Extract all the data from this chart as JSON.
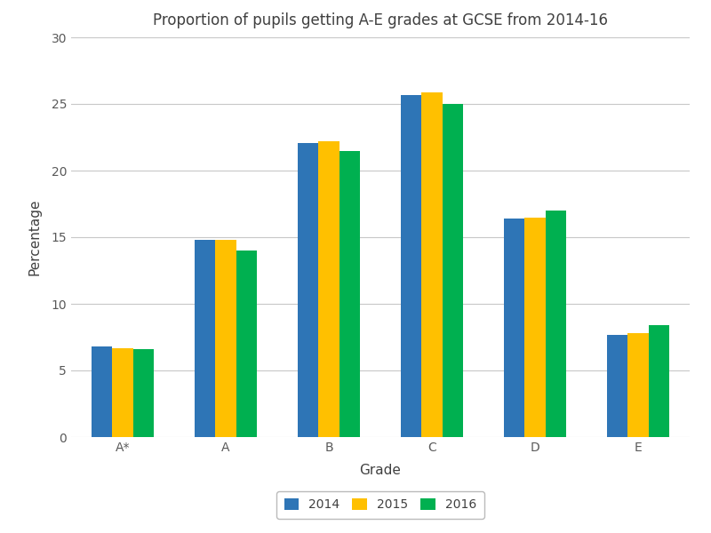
{
  "title": "Proportion of pupils getting A-E grades at GCSE from 2014-16",
  "xlabel": "Grade",
  "ylabel": "Percentage",
  "categories": [
    "A*",
    "A",
    "B",
    "C",
    "D",
    "E"
  ],
  "series": {
    "2014": [
      6.8,
      14.8,
      22.1,
      25.7,
      16.4,
      7.7
    ],
    "2015": [
      6.7,
      14.8,
      22.2,
      25.9,
      16.5,
      7.8
    ],
    "2016": [
      6.6,
      14.0,
      21.5,
      25.0,
      17.0,
      8.4
    ]
  },
  "colors": {
    "2014": "#2E75B6",
    "2015": "#FFC000",
    "2016": "#00B050"
  },
  "ylim": [
    0,
    30
  ],
  "yticks": [
    0,
    5,
    10,
    15,
    20,
    25,
    30
  ],
  "legend_labels": [
    "2014",
    "2015",
    "2016"
  ],
  "background_color": "#FFFFFF",
  "grid_color": "#C8C8C8",
  "title_fontsize": 12,
  "axis_label_fontsize": 11,
  "tick_fontsize": 10,
  "legend_fontsize": 10,
  "bar_width": 0.2
}
